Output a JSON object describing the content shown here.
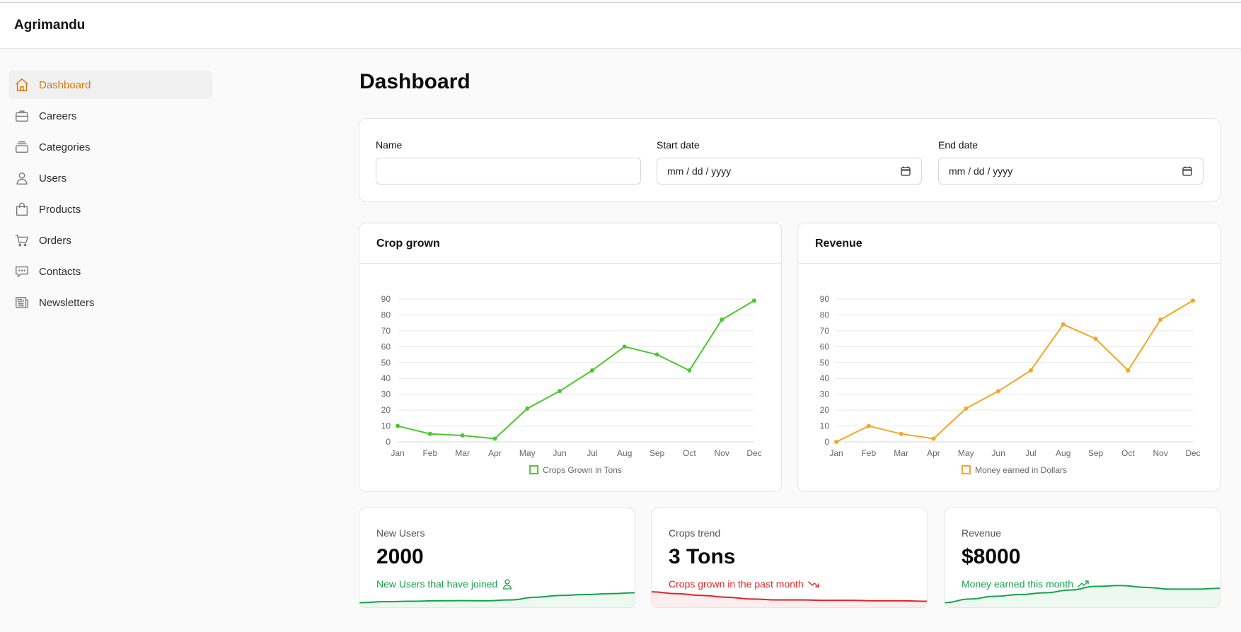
{
  "app": {
    "brand": "Agrimandu"
  },
  "sidebar": {
    "items": [
      {
        "label": "Dashboard",
        "icon": "home-icon",
        "active": true
      },
      {
        "label": "Careers",
        "icon": "briefcase-icon"
      },
      {
        "label": "Categories",
        "icon": "layers-icon"
      },
      {
        "label": "Users",
        "icon": "user-icon"
      },
      {
        "label": "Products",
        "icon": "shopping-bag-icon"
      },
      {
        "label": "Orders",
        "icon": "cart-icon"
      },
      {
        "label": "Contacts",
        "icon": "chat-icon"
      },
      {
        "label": "Newsletters",
        "icon": "newspaper-icon"
      }
    ]
  },
  "page": {
    "title": "Dashboard"
  },
  "filters": {
    "name_label": "Name",
    "name_value": "",
    "start_label": "Start date",
    "start_placeholder": "mm / dd / yyyy",
    "end_label": "End date",
    "end_placeholder": "mm / dd / yyyy"
  },
  "colors": {
    "accent": "#d97706",
    "crop": "#4cc72b",
    "revenue": "#f5a623",
    "positive": "#16a34a",
    "negative": "#dc2626"
  },
  "chart_data": [
    {
      "type": "line",
      "title": "Crop grown",
      "categories": [
        "Jan",
        "Feb",
        "Mar",
        "Apr",
        "May",
        "Jun",
        "Jul",
        "Aug",
        "Sep",
        "Oct",
        "Nov",
        "Dec"
      ],
      "series": [
        {
          "name": "Crops Grown in Tons",
          "values": [
            10,
            5,
            4,
            2,
            21,
            32,
            45,
            60,
            55,
            45,
            77,
            89
          ]
        }
      ],
      "yticks": [
        0,
        10,
        20,
        30,
        40,
        50,
        60,
        70,
        80,
        90
      ],
      "ylim": [
        0,
        90
      ],
      "grid": true,
      "legend": "bottom"
    },
    {
      "type": "line",
      "title": "Revenue",
      "categories": [
        "Jan",
        "Feb",
        "Mar",
        "Apr",
        "May",
        "Jun",
        "Jul",
        "Aug",
        "Sep",
        "Oct",
        "Nov",
        "Dec"
      ],
      "series": [
        {
          "name": "Money earned in Dollars",
          "values": [
            0,
            10,
            5,
            2,
            21,
            32,
            45,
            74,
            65,
            45,
            77,
            89
          ]
        }
      ],
      "yticks": [
        0,
        10,
        20,
        30,
        40,
        50,
        60,
        70,
        80,
        90
      ],
      "ylim": [
        0,
        90
      ],
      "grid": true,
      "legend": "bottom"
    }
  ],
  "stats": [
    {
      "label": "New Users",
      "value": "2000",
      "sub": "New Users that have joined",
      "trend": "positive",
      "icon": "user-icon",
      "spark": [
        2,
        3,
        3.5,
        4,
        4.2,
        4,
        5,
        8,
        10,
        11,
        12,
        13
      ]
    },
    {
      "label": "Crops trend",
      "value": "3 Tons",
      "sub": "Crops grown in the past month",
      "trend": "negative",
      "icon": "trending-down-icon",
      "spark": [
        14,
        12,
        10,
        8,
        6,
        5,
        5,
        4.5,
        4.5,
        4,
        4,
        3.5
      ]
    },
    {
      "label": "Revenue",
      "value": "$8000",
      "sub": "Money earned this month",
      "trend": "positive",
      "icon": "trending-up-icon",
      "spark": [
        2,
        6,
        9,
        11,
        13,
        16,
        20,
        21,
        19,
        17,
        17,
        18
      ]
    }
  ]
}
